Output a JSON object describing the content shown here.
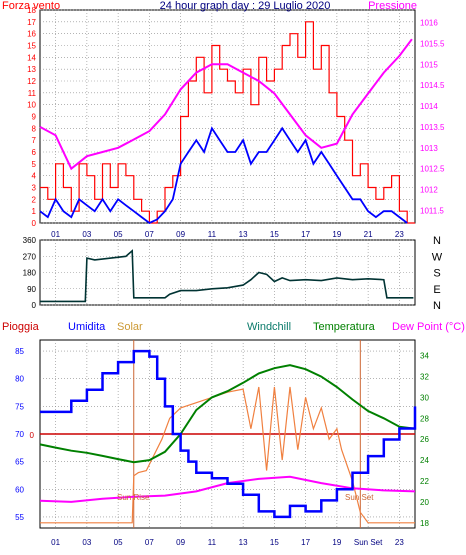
{
  "colors": {
    "wind": "#ff0000",
    "gust_line": "#0000ff",
    "pressure": "#ff00ff",
    "direction": "#003333",
    "humidity": "#0000ff",
    "solar": "#f08040",
    "windchill": "#0a7a6a",
    "temperature": "#008000",
    "dewpoint": "#ff00ff",
    "rain": "#cc0000",
    "title": "#000080",
    "suntime": "#cc6633"
  },
  "chart_data": [
    {
      "type": "line",
      "title": "24 hour graph day : 29 Luglio 2020",
      "left_label": "Forza vento",
      "right_label": "Pressione",
      "x_ticks": [
        "01",
        "03",
        "05",
        "07",
        "09",
        "11",
        "13",
        "15",
        "17",
        "19",
        "21",
        "23"
      ],
      "y_left_ticks": [
        "0",
        "1",
        "2",
        "3",
        "4",
        "5",
        "6",
        "7",
        "8",
        "9",
        "10",
        "11",
        "12",
        "13",
        "14",
        "15",
        "16",
        "17",
        "18"
      ],
      "y_right_ticks": [
        "1011.5",
        "1012",
        "1012.5",
        "1013",
        "1013.5",
        "1014",
        "1014.5",
        "1015",
        "1015.5",
        "1016"
      ],
      "ylim_left": [
        0,
        18
      ],
      "ylim_right": [
        1011.2,
        1016.3
      ],
      "grid": true,
      "series": [
        {
          "key": "wind_gust",
          "x": [
            0,
            0.5,
            1,
            1.5,
            2,
            2.5,
            3,
            3.5,
            4,
            4.5,
            5,
            5.5,
            6,
            6.5,
            7,
            7.5,
            8,
            8.5,
            9,
            9.5,
            10,
            10.5,
            11,
            11.5,
            12,
            12.5,
            13,
            13.5,
            14,
            14.5,
            15,
            15.5,
            16,
            16.5,
            17,
            17.5,
            18,
            18.5,
            19,
            19.5,
            20,
            20.5,
            21,
            21.5,
            22,
            22.5,
            23,
            23.5
          ],
          "values": [
            3,
            2,
            5,
            3,
            1,
            5,
            4,
            2,
            5,
            3,
            5,
            4,
            2,
            1,
            0,
            1,
            3,
            4,
            9,
            12,
            14,
            11,
            15,
            13,
            12,
            11,
            13,
            10,
            14,
            12,
            13,
            15,
            16,
            14,
            17,
            13,
            15,
            11,
            9,
            7,
            4,
            5,
            3,
            2,
            3,
            4,
            1,
            0
          ]
        },
        {
          "key": "wind_speed",
          "x": [
            0,
            0.5,
            1,
            1.5,
            2,
            2.5,
            3,
            3.5,
            4,
            4.5,
            5,
            5.5,
            6,
            6.5,
            7,
            7.5,
            8,
            8.5,
            9,
            9.5,
            10,
            10.5,
            11,
            11.5,
            12,
            12.5,
            13,
            13.5,
            14,
            14.5,
            15,
            15.5,
            16,
            16.5,
            17,
            17.5,
            18,
            18.5,
            19,
            19.5,
            20,
            20.5,
            21,
            21.5,
            22,
            22.5,
            23,
            23.5
          ],
          "values": [
            1,
            0.5,
            2,
            1,
            0.5,
            2,
            1.5,
            1,
            2,
            1,
            2,
            1.5,
            1,
            0.5,
            0,
            0.3,
            1,
            2,
            5,
            6,
            7,
            6,
            8,
            7,
            6,
            6,
            7,
            5,
            6,
            6,
            7,
            8,
            7,
            6,
            7,
            5,
            6,
            5,
            4,
            3,
            2,
            2,
            1,
            0.5,
            1,
            1,
            0.5,
            0
          ]
        },
        {
          "key": "pressure",
          "x": [
            0,
            1,
            2,
            3,
            4,
            5,
            6,
            7,
            8,
            9,
            10,
            11,
            12,
            13,
            14,
            15,
            16,
            17,
            18,
            19,
            20,
            21,
            22,
            23,
            23.8
          ],
          "values": [
            1013.5,
            1013.3,
            1012.5,
            1012.8,
            1012.9,
            1013.0,
            1013.2,
            1013.4,
            1013.8,
            1014.4,
            1014.8,
            1015.0,
            1015.0,
            1014.8,
            1014.6,
            1014.3,
            1013.8,
            1013.3,
            1013.0,
            1013.1,
            1013.8,
            1014.3,
            1014.8,
            1015.2,
            1015.6
          ]
        }
      ]
    },
    {
      "type": "line",
      "title": "",
      "y_left_ticks": [
        "360",
        "270",
        "180",
        "90",
        "0"
      ],
      "y_right_ticks": [
        "N",
        "W",
        "S",
        "E",
        "N"
      ],
      "ylim": [
        0,
        360
      ],
      "grid": true,
      "series": [
        {
          "key": "wind_direction",
          "x": [
            0,
            1.5,
            2.9,
            3.0,
            3.5,
            5.5,
            5.9,
            6.0,
            7,
            8,
            8.3,
            9,
            10,
            11,
            12,
            13,
            13.5,
            14,
            14.5,
            15,
            15.5,
            16,
            17,
            18,
            19,
            20,
            21,
            22,
            22.2,
            23,
            23.9
          ],
          "values": [
            20,
            20,
            20,
            260,
            250,
            270,
            300,
            40,
            40,
            40,
            60,
            80,
            80,
            90,
            95,
            110,
            140,
            180,
            170,
            130,
            150,
            135,
            140,
            135,
            150,
            140,
            145,
            140,
            40,
            40,
            40
          ]
        }
      ]
    },
    {
      "type": "line",
      "title": "",
      "legend": [
        "Pioggia",
        "Umidita",
        "Solar",
        "Windchill",
        "Temperatura",
        "Dew Point (°C)"
      ],
      "x_ticks": [
        "01",
        "03",
        "05",
        "07",
        "09",
        "11",
        "13",
        "15",
        "17",
        "19",
        "Sun Set",
        "23"
      ],
      "y_left_ticks": [
        "55",
        "60",
        "65",
        "70",
        "75",
        "80",
        "85"
      ],
      "y_right_ticks": [
        "18",
        "20",
        "22",
        "24",
        "26",
        "28",
        "30",
        "32",
        "34"
      ],
      "ylim_left": [
        53,
        87
      ],
      "ylim_right": [
        17.5,
        35.5
      ],
      "annotations": [
        "Sun Rise",
        "Sun Set"
      ],
      "rain_label": "0",
      "grid": true,
      "series": [
        {
          "key": "humidity",
          "x": [
            0,
            1,
            2,
            3,
            4,
            5,
            6,
            6.5,
            7,
            7.5,
            8,
            8.5,
            9,
            9.5,
            10,
            11,
            12,
            13,
            14,
            15,
            16,
            17,
            18,
            19,
            20,
            21,
            22,
            23,
            24
          ],
          "values": [
            74,
            74,
            76,
            78,
            81,
            83,
            85,
            85,
            84,
            80,
            75,
            70,
            67,
            65,
            63,
            62,
            61,
            59,
            56,
            55,
            57,
            56,
            58,
            60,
            63,
            66,
            69,
            71,
            75
          ]
        },
        {
          "key": "temperature",
          "x": [
            0,
            1,
            2,
            3,
            4,
            5,
            6,
            7,
            8,
            9,
            10,
            11,
            12,
            13,
            14,
            15,
            16,
            17,
            18,
            19,
            20,
            21,
            22,
            23,
            24
          ],
          "values": [
            25.5,
            25.2,
            24.9,
            24.7,
            24.4,
            24.1,
            23.8,
            24.0,
            24.8,
            26.5,
            28.8,
            30.0,
            30.6,
            31.4,
            32.3,
            32.8,
            33.1,
            32.7,
            32.0,
            31.0,
            29.8,
            28.7,
            28.0,
            27.2,
            27.0
          ]
        },
        {
          "key": "dew_point",
          "x": [
            0,
            2,
            4,
            6,
            8,
            10,
            12,
            14,
            16,
            18,
            20,
            22,
            24
          ],
          "values": [
            20.1,
            20.0,
            20.3,
            20.5,
            20.6,
            21.0,
            21.8,
            22.2,
            22.4,
            21.8,
            21.3,
            21.1,
            21.0
          ]
        },
        {
          "key": "solar",
          "x": [
            0,
            5.9,
            6,
            6.3,
            6.8,
            7.3,
            7.8,
            8.3,
            9,
            10,
            11,
            12,
            13,
            13.5,
            14,
            14.5,
            15,
            15.5,
            16,
            16.5,
            17,
            17.5,
            18,
            18.5,
            19,
            19.3,
            20,
            20.5,
            21,
            24
          ],
          "values": [
            18,
            18,
            22.5,
            22.8,
            23,
            24.5,
            26,
            28,
            29,
            29.5,
            30,
            30.5,
            30.8,
            27,
            31,
            23,
            31,
            24,
            31,
            25,
            30,
            27,
            29,
            26,
            27,
            25,
            22,
            19,
            18,
            18
          ]
        }
      ]
    }
  ]
}
